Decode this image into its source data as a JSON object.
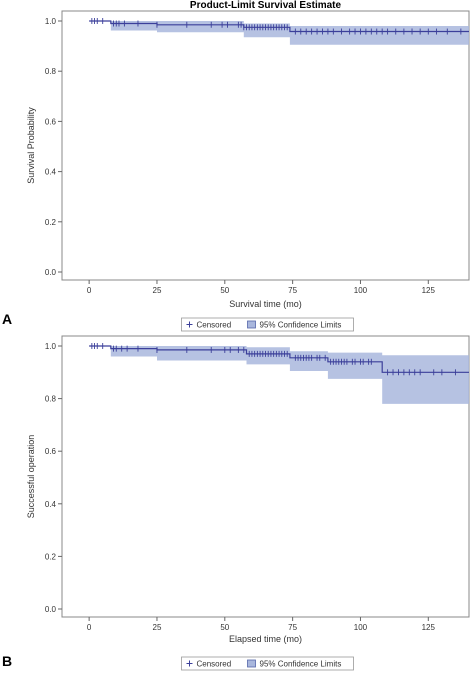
{
  "chart_data": [
    {
      "type": "line",
      "panel_label": "A",
      "title": "Product-Limit Survival Estimate",
      "xlabel": "Survival time (mo)",
      "ylabel": "Survival Probability",
      "xlim": [
        -10,
        140
      ],
      "ylim": [
        0,
        1
      ],
      "xticks": [
        "0",
        "25",
        "50",
        "75",
        "100",
        "125"
      ],
      "yticks": [
        "0.0",
        "0.2",
        "0.4",
        "0.6",
        "0.8",
        "1.0"
      ],
      "legend": [
        "Censored",
        "95% Confidence Limits"
      ],
      "legend_position": "bottom",
      "series": [
        {
          "curve": [
            [
              0,
              1.0
            ],
            [
              8,
              0.99
            ],
            [
              25,
              0.985
            ],
            [
              57,
              0.975
            ],
            [
              74,
              0.958
            ],
            [
              140,
              0.958
            ]
          ],
          "ci": [
            [
              0,
              1.0,
              1.0
            ],
            [
              8,
              1.0,
              0.962
            ],
            [
              25,
              1.0,
              0.955
            ],
            [
              57,
              0.99,
              0.935
            ],
            [
              74,
              0.98,
              0.905
            ],
            [
              140,
              0.98,
              0.905
            ]
          ],
          "censored": [
            1,
            2,
            3,
            5,
            9,
            10,
            11,
            13,
            18,
            25,
            36,
            45,
            49,
            51,
            55,
            56,
            57,
            58,
            59,
            60,
            61,
            62,
            63,
            64,
            65,
            66,
            67,
            68,
            69,
            70,
            71,
            72,
            73,
            76,
            78,
            80,
            82,
            84,
            86,
            88,
            90,
            93,
            96,
            98,
            100,
            102,
            104,
            106,
            108,
            110,
            113,
            116,
            119,
            122,
            125,
            128,
            132,
            137
          ]
        }
      ],
      "color": "#3b3f9a",
      "band_color": "#a9b7dd"
    },
    {
      "type": "line",
      "panel_label": "B",
      "title": "",
      "xlabel": "Elapsed time (mo)",
      "ylabel": "Successful operation",
      "xlim": [
        -10,
        140
      ],
      "ylim": [
        0,
        1
      ],
      "xticks": [
        "0",
        "25",
        "50",
        "75",
        "100",
        "125"
      ],
      "yticks": [
        "0.0",
        "0.2",
        "0.4",
        "0.6",
        "0.8",
        "1.0"
      ],
      "legend": [
        "Censored",
        "95% Confidence Limits"
      ],
      "legend_position": "bottom",
      "series": [
        {
          "curve": [
            [
              0,
              1.0
            ],
            [
              8,
              0.99
            ],
            [
              25,
              0.985
            ],
            [
              58,
              0.97
            ],
            [
              74,
              0.955
            ],
            [
              88,
              0.94
            ],
            [
              108,
              0.9
            ],
            [
              140,
              0.9
            ]
          ],
          "ci": [
            [
              0,
              1.0,
              1.0
            ],
            [
              8,
              1.0,
              0.96
            ],
            [
              25,
              1.0,
              0.945
            ],
            [
              58,
              0.995,
              0.93
            ],
            [
              74,
              0.98,
              0.905
            ],
            [
              88,
              0.975,
              0.875
            ],
            [
              108,
              0.965,
              0.78
            ],
            [
              140,
              0.965,
              0.78
            ]
          ],
          "censored": [
            1,
            2,
            3,
            5,
            9,
            10,
            12,
            14,
            18,
            25,
            36,
            45,
            50,
            52,
            55,
            57,
            59,
            60,
            61,
            62,
            63,
            64,
            65,
            66,
            67,
            68,
            69,
            70,
            71,
            72,
            73,
            76,
            77,
            78,
            79,
            80,
            81,
            82,
            84,
            85,
            87,
            89,
            90,
            91,
            92,
            93,
            94,
            95,
            97,
            98,
            100,
            101,
            103,
            104,
            110,
            112,
            114,
            116,
            118,
            120,
            122,
            127,
            130,
            135
          ]
        }
      ],
      "color": "#3b3f9a",
      "band_color": "#a9b7dd"
    }
  ]
}
